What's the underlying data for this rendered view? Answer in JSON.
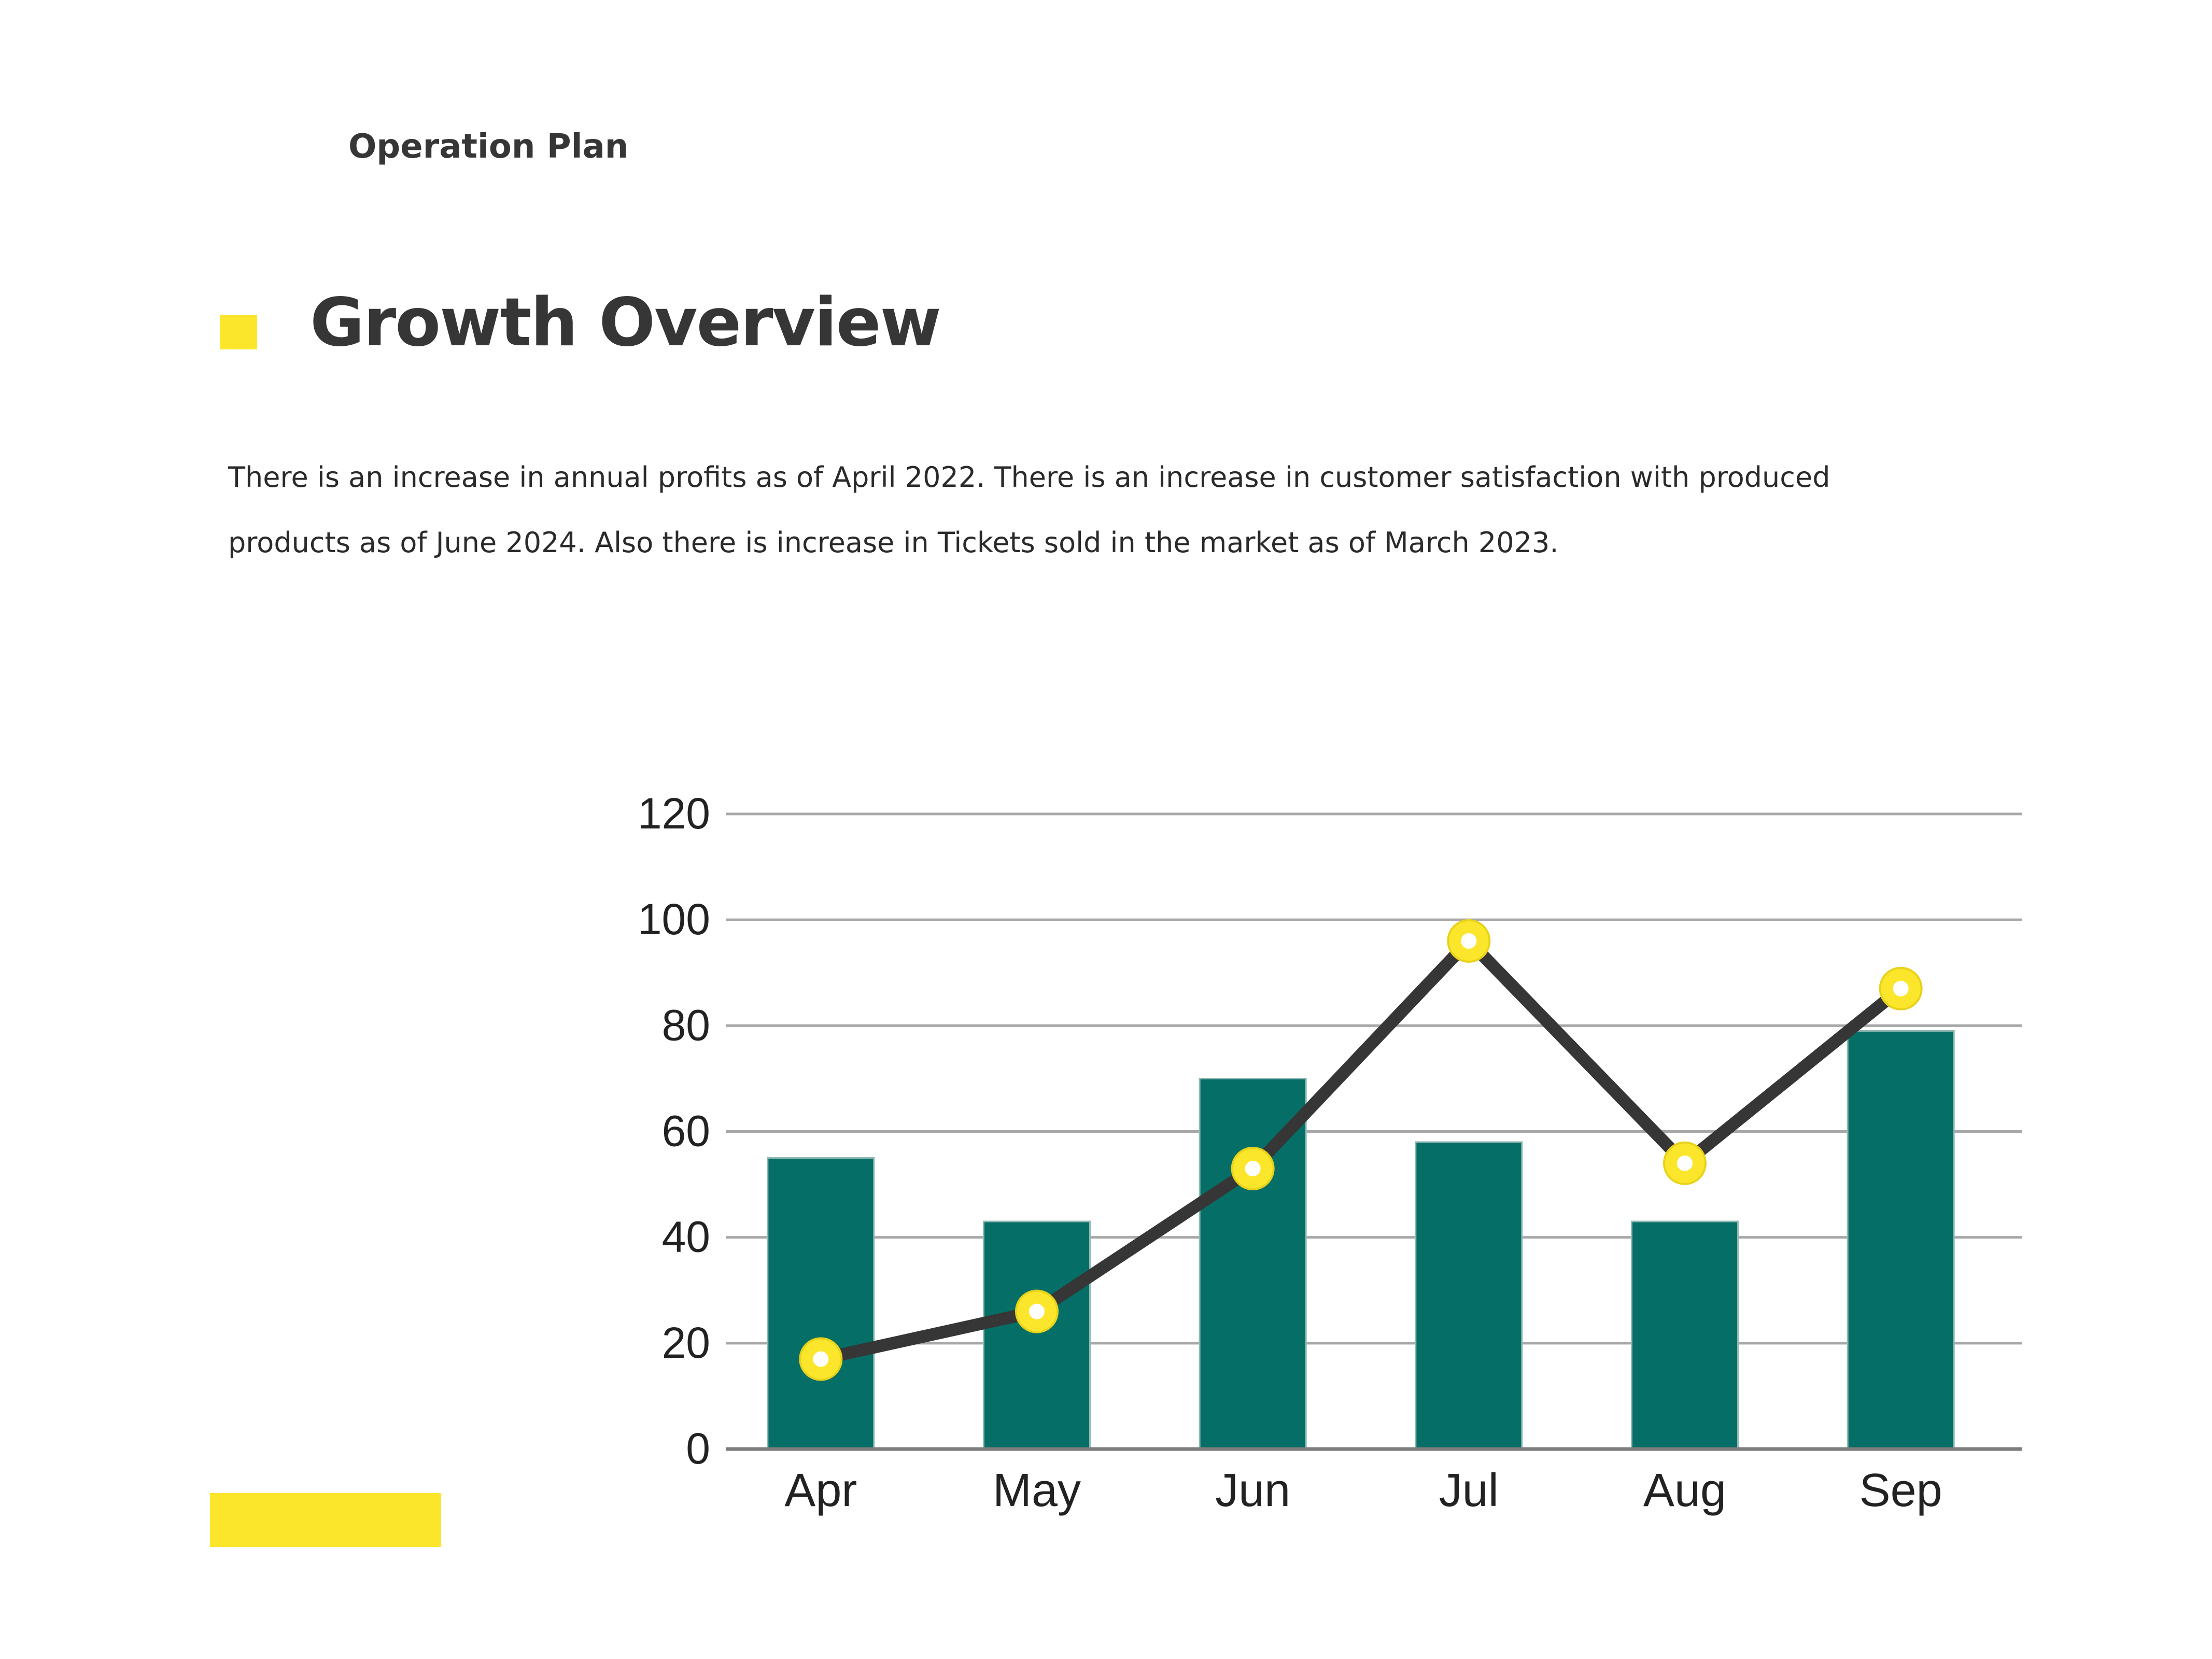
{
  "header": {
    "kicker": "Operation Plan",
    "title": "Growth Overview"
  },
  "body": {
    "paragraph": "There is an increase in annual profits as of April 2022. There is an increase in customer satisfaction with produced products as of June 2024. Also there is increase in Tickets sold in the market as of March 2023."
  },
  "colors": {
    "accent": "#fce62c",
    "bar": "#056e66",
    "line": "#363636",
    "text": "#363636"
  },
  "chart_data": {
    "type": "bar",
    "categories": [
      "Apr",
      "May",
      "Jun",
      "Jul",
      "Aug",
      "Sep"
    ],
    "series": [
      {
        "type": "bar",
        "values": [
          55,
          43,
          70,
          58,
          43,
          79
        ]
      },
      {
        "type": "line",
        "values": [
          17,
          26,
          53,
          96,
          54,
          87
        ]
      }
    ],
    "ylim": [
      0,
      120
    ],
    "yticks": [
      "0",
      "20",
      "40",
      "60",
      "80",
      "100",
      "120"
    ],
    "grid": true,
    "legend": "none",
    "xlabel": "",
    "ylabel": ""
  }
}
